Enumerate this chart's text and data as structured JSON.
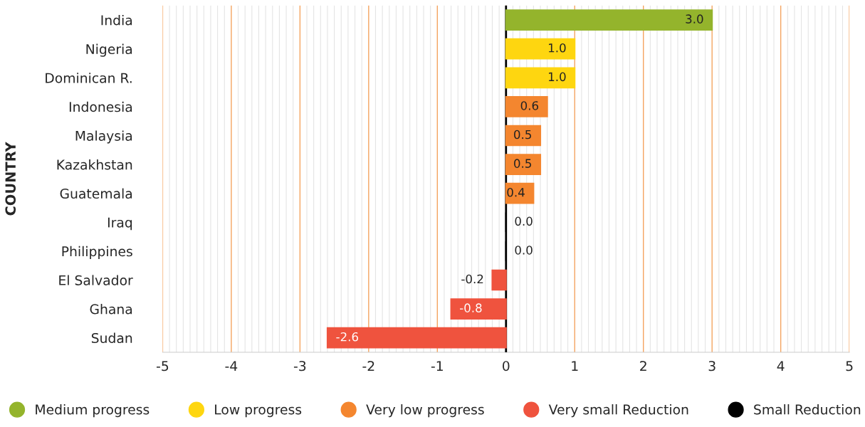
{
  "chart_data": {
    "type": "bar",
    "orientation": "horizontal",
    "ylabel": "COUNTRY",
    "categories": [
      "India",
      "Nigeria",
      "Dominican R.",
      "Indonesia",
      "Malaysia",
      "Kazakhstan",
      "Guatemala",
      "Iraq",
      "Philippines",
      "El Salvador",
      "Ghana",
      "Sudan"
    ],
    "series": [
      {
        "name": "Medium progress",
        "color": "#94b42c",
        "values": [
          3.0,
          null,
          null,
          null,
          null,
          null,
          null,
          null,
          null,
          null,
          null,
          null
        ],
        "value_labels": [
          "3.0",
          null,
          null,
          null,
          null,
          null,
          null,
          null,
          null,
          null,
          null,
          null
        ]
      },
      {
        "name": "Low progress",
        "color": "#fed610",
        "values": [
          null,
          1.0,
          1.0,
          null,
          null,
          null,
          null,
          null,
          null,
          null,
          null,
          null
        ],
        "value_labels": [
          null,
          "1.0",
          "1.0",
          null,
          null,
          null,
          null,
          null,
          null,
          null,
          null,
          null
        ]
      },
      {
        "name": "Very low progress",
        "color": "#f4862f",
        "values": [
          null,
          null,
          null,
          0.6,
          0.5,
          0.5,
          0.4,
          null,
          null,
          null,
          null,
          null
        ],
        "value_labels": [
          null,
          null,
          null,
          "0.6",
          "0.5",
          "0.5",
          "0.4",
          null,
          null,
          null,
          null,
          null
        ]
      },
      {
        "name": "Very small Reduction",
        "color": "#ef533e",
        "values": [
          null,
          null,
          null,
          null,
          null,
          null,
          null,
          null,
          null,
          -0.2,
          -0.8,
          -2.6
        ],
        "value_labels": [
          null,
          null,
          null,
          null,
          null,
          null,
          null,
          null,
          null,
          "-0.2",
          "-0.8",
          "-2.6"
        ]
      },
      {
        "name": "Small Reduction",
        "color": "#000000",
        "values": [
          null,
          null,
          null,
          null,
          null,
          null,
          null,
          0.0,
          0.0,
          null,
          null,
          null
        ],
        "value_labels": [
          null,
          null,
          null,
          null,
          null,
          null,
          null,
          "0.0",
          "0.0",
          null,
          null,
          null
        ]
      }
    ],
    "xlim": [
      -5,
      5
    ],
    "xticks": [
      -5,
      -4,
      -3,
      -2,
      -1,
      0,
      1,
      2,
      3,
      4,
      5
    ],
    "ref_lines": [
      {
        "axis": "x",
        "value": 0,
        "color": "#000000"
      }
    ],
    "grid": "x",
    "legend": "bottom"
  }
}
